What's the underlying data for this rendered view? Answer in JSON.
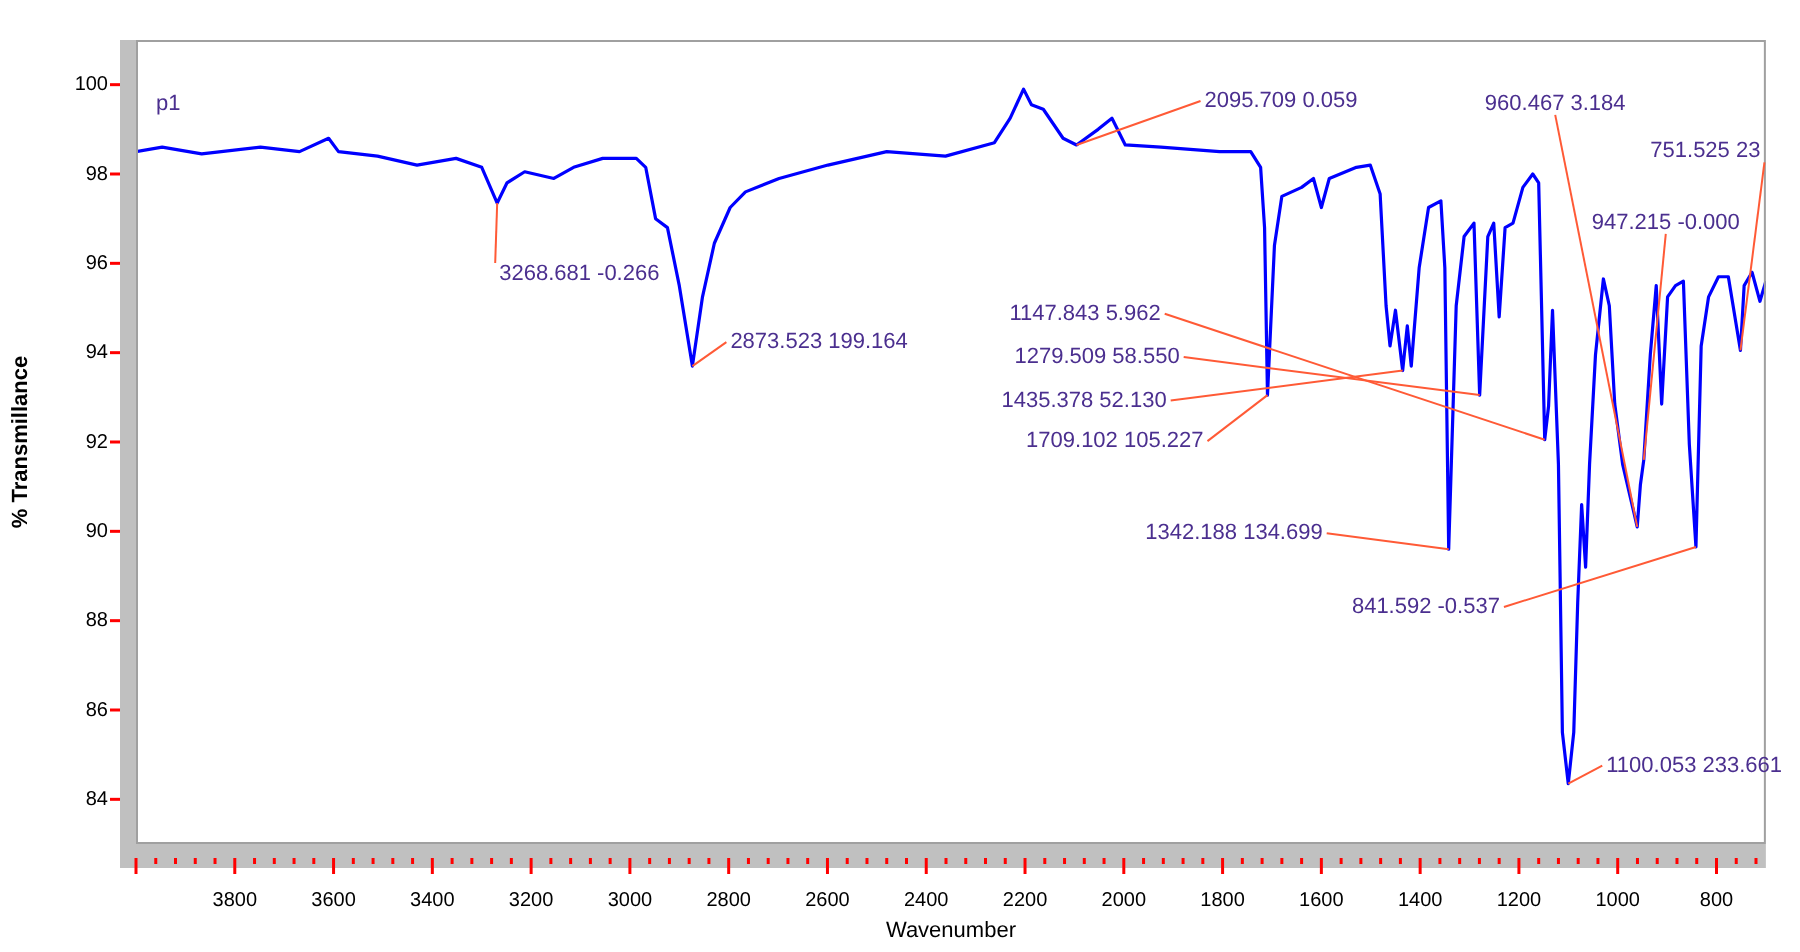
{
  "chart_data": {
    "type": "line",
    "xlabel": "Wavenumber",
    "ylabel": "% Transmillance",
    "xlim": [
      4000,
      700
    ],
    "ylim": [
      83,
      101
    ],
    "xticks": [
      {
        "value": 4000,
        "label": null
      },
      {
        "value": 3960,
        "label": null
      },
      {
        "value": 3920,
        "label": null
      },
      {
        "value": 3880,
        "label": null
      },
      {
        "value": 3840,
        "label": null
      },
      3800,
      {
        "value": 3760,
        "label": null
      },
      {
        "value": 3720,
        "label": null
      },
      {
        "value": 3680,
        "label": null
      },
      {
        "value": 3640,
        "label": null
      },
      3600,
      {
        "value": 3560,
        "label": null
      },
      {
        "value": 3520,
        "label": null
      },
      {
        "value": 3480,
        "label": null
      },
      {
        "value": 3440,
        "label": null
      },
      3400,
      {
        "value": 3360,
        "label": null
      },
      {
        "value": 3320,
        "label": null
      },
      {
        "value": 3280,
        "label": null
      },
      {
        "value": 3240,
        "label": null
      },
      3200,
      {
        "value": 3160,
        "label": null
      },
      {
        "value": 3120,
        "label": null
      },
      {
        "value": 3080,
        "label": null
      },
      {
        "value": 3040,
        "label": null
      },
      3000,
      {
        "value": 2960,
        "label": null
      },
      {
        "value": 2920,
        "label": null
      },
      {
        "value": 2880,
        "label": null
      },
      {
        "value": 2840,
        "label": null
      },
      2800,
      {
        "value": 2760,
        "label": null
      },
      {
        "value": 2720,
        "label": null
      },
      {
        "value": 2680,
        "label": null
      },
      {
        "value": 2640,
        "label": null
      },
      2600,
      {
        "value": 2560,
        "label": null
      },
      {
        "value": 2520,
        "label": null
      },
      {
        "value": 2480,
        "label": null
      },
      {
        "value": 2440,
        "label": null
      },
      2400,
      {
        "value": 2360,
        "label": null
      },
      {
        "value": 2320,
        "label": null
      },
      {
        "value": 2280,
        "label": null
      },
      {
        "value": 2240,
        "label": null
      },
      2200,
      {
        "value": 2160,
        "label": null
      },
      {
        "value": 2120,
        "label": null
      },
      {
        "value": 2080,
        "label": null
      },
      {
        "value": 2040,
        "label": null
      },
      2000,
      {
        "value": 1960,
        "label": null
      },
      {
        "value": 1920,
        "label": null
      },
      {
        "value": 1880,
        "label": null
      },
      {
        "value": 1840,
        "label": null
      },
      1800,
      {
        "value": 1760,
        "label": null
      },
      {
        "value": 1720,
        "label": null
      },
      {
        "value": 1680,
        "label": null
      },
      {
        "value": 1640,
        "label": null
      },
      1600,
      {
        "value": 1560,
        "label": null
      },
      {
        "value": 1520,
        "label": null
      },
      {
        "value": 1480,
        "label": null
      },
      {
        "value": 1440,
        "label": null
      },
      1400,
      {
        "value": 1360,
        "label": null
      },
      {
        "value": 1320,
        "label": null
      },
      {
        "value": 1280,
        "label": null
      },
      {
        "value": 1240,
        "label": null
      },
      1200,
      {
        "value": 1160,
        "label": null
      },
      {
        "value": 1120,
        "label": null
      },
      {
        "value": 1080,
        "label": null
      },
      {
        "value": 1040,
        "label": null
      },
      1000,
      {
        "value": 960,
        "label": null
      },
      {
        "value": 920,
        "label": null
      },
      {
        "value": 880,
        "label": null
      },
      {
        "value": 840,
        "label": null
      },
      800,
      {
        "value": 760,
        "label": null
      },
      {
        "value": 720,
        "label": null
      }
    ],
    "yticks": [
      84,
      86,
      88,
      90,
      92,
      94,
      96,
      98,
      100
    ],
    "grid": false,
    "legend": false,
    "marker": "none",
    "line_style": "solid",
    "series": [
      {
        "color": "#0000ff",
        "x": [
          4000,
          3947,
          3867,
          3748,
          3669,
          3610,
          3590,
          3511,
          3431,
          3352,
          3300,
          3268.7,
          3249,
          3213,
          3154,
          3114,
          3055,
          2987,
          2968,
          2948,
          2924,
          2900,
          2873.5,
          2853,
          2829,
          2797,
          2766,
          2698,
          2599,
          2480,
          2361,
          2262,
          2230,
          2203,
          2187,
          2163,
          2123,
          2095.7,
          2052,
          2024,
          1997,
          1925,
          1806,
          1743,
          1723,
          1715,
          1709.1,
          1695,
          1680,
          1640,
          1616,
          1600,
          1584,
          1529,
          1501,
          1481,
          1469,
          1461,
          1450,
          1435.4,
          1426,
          1418,
          1402,
          1383,
          1358,
          1350,
          1342.2,
          1327,
          1311,
          1291,
          1279.5,
          1263,
          1251,
          1240,
          1228,
          1212,
          1192,
          1172,
          1160,
          1147.8,
          1140,
          1132,
          1120,
          1112,
          1100.1,
          1089,
          1081,
          1073,
          1065,
          1057,
          1045,
          1029,
          1017,
          1006,
          990,
          960.5,
          954,
          947.2,
          934,
          922,
          911,
          899,
          883,
          867,
          855,
          841.6,
          831,
          816,
          796,
          776,
          751.5,
          744,
          728,
          712,
          700
        ],
        "values": [
          98.5,
          98.6,
          98.45,
          98.6,
          98.5,
          98.8,
          98.5,
          98.4,
          98.2,
          98.35,
          98.15,
          97.35,
          97.8,
          98.05,
          97.9,
          98.15,
          98.35,
          98.35,
          98.15,
          97.0,
          96.8,
          95.5,
          93.7,
          95.25,
          96.45,
          97.25,
          97.6,
          97.9,
          98.2,
          98.5,
          98.4,
          98.7,
          99.25,
          99.9,
          99.55,
          99.45,
          98.8,
          98.65,
          99.0,
          99.25,
          98.65,
          98.6,
          98.5,
          98.5,
          98.15,
          96.8,
          93.05,
          96.4,
          97.5,
          97.7,
          97.9,
          97.25,
          97.9,
          98.15,
          98.2,
          97.55,
          95.05,
          94.15,
          94.95,
          93.6,
          94.6,
          93.7,
          95.9,
          97.25,
          97.4,
          95.9,
          89.6,
          95.05,
          96.6,
          96.9,
          93.05,
          96.6,
          96.9,
          94.8,
          96.8,
          96.9,
          97.7,
          98.0,
          97.8,
          92.05,
          92.8,
          94.95,
          91.5,
          85.5,
          84.35,
          85.5,
          88.4,
          90.6,
          89.2,
          91.5,
          93.95,
          95.65,
          95.05,
          92.85,
          91.5,
          90.1,
          91.05,
          91.6,
          93.95,
          95.5,
          92.85,
          95.25,
          95.5,
          95.6,
          91.95,
          89.65,
          94.15,
          95.25,
          95.7,
          95.7,
          94.05,
          95.5,
          95.8,
          95.15,
          95.6
        ]
      }
    ],
    "annotations": [
      "p1",
      {
        "text": "3268.681 -0.266",
        "x": 3268.7,
        "y": 97.35
      },
      {
        "text": "2873.523 199.164",
        "x": 2873.5,
        "y": 93.7
      },
      {
        "text": "2095.709 0.059",
        "x": 2095.7,
        "y": 98.65
      },
      {
        "text": "1147.843 5.962",
        "x": 1147.8,
        "y": 92.05
      },
      {
        "text": "1279.509 58.550",
        "x": 1279.5,
        "y": 93.05
      },
      {
        "text": "1435.378 52.130",
        "x": 1435.4,
        "y": 93.6
      },
      {
        "text": "1709.102 105.227",
        "x": 1709.1,
        "y": 93.05
      },
      {
        "text": "1342.188 134.699",
        "x": 1342.2,
        "y": 89.6
      },
      {
        "text": "960.467 3.184",
        "x": 960.5,
        "y": 90.1
      },
      {
        "text": "947.215 -0.000",
        "x": 947.2,
        "y": 91.6
      },
      {
        "text": "751.525 23",
        "x": 751.5,
        "y": 94.05
      },
      {
        "text": "1100.053 233.661",
        "x": 1100.1,
        "y": 84.35
      },
      {
        "text": "841.592 -0.537",
        "x": 841.6,
        "y": 89.65
      }
    ]
  }
}
